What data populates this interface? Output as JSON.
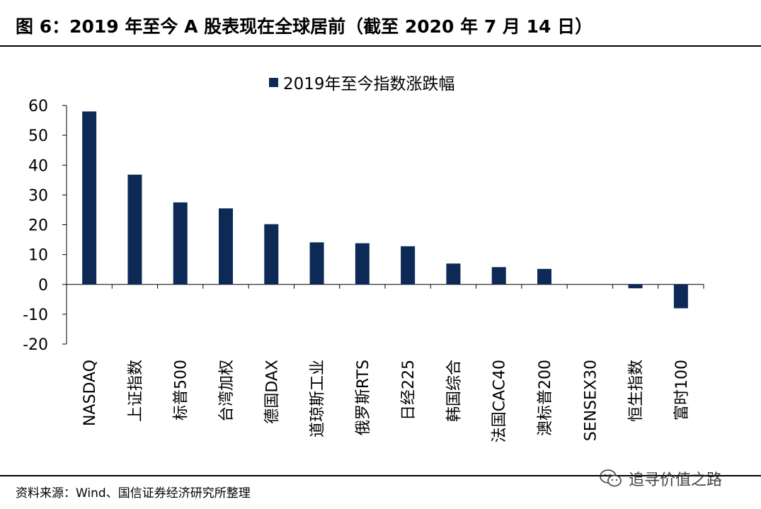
{
  "figure": {
    "title": "图 6：2019 年至今 A 股表现在全球居前（截至 2020 年 7 月 14 日）",
    "source": "资料来源：Wind、国信证券经济研究所整理",
    "watermark": "追寻价值之路",
    "watermark_icon": "wechat-icon"
  },
  "chart_data": {
    "type": "bar",
    "title": "",
    "xlabel": "",
    "ylabel": "",
    "ylim": [
      -20,
      60
    ],
    "yticks": [
      -20,
      -10,
      0,
      10,
      20,
      30,
      40,
      50,
      60
    ],
    "grid": false,
    "legend_position": "top-center",
    "bar_color": "#0d2a56",
    "categories": [
      "NASDAQ",
      "上证指数",
      "标普500",
      "台湾加权",
      "德国DAX",
      "道琼斯工业",
      "俄罗斯RTS",
      "日经225",
      "韩国综合",
      "法国CAC40",
      "澳标普200",
      "SENSEX30",
      "恒生指数",
      "富时100"
    ],
    "series": [
      {
        "name": "2019年至今指数涨跌幅",
        "values": [
          58.0,
          36.8,
          27.5,
          25.5,
          20.2,
          14.1,
          13.8,
          12.8,
          7.0,
          5.8,
          5.2,
          0.0,
          -1.3,
          -8.0
        ]
      }
    ]
  }
}
